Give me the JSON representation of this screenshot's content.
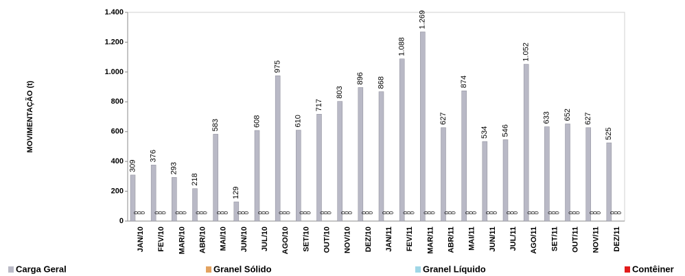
{
  "chart_data": {
    "type": "bar",
    "y_label": "MOVIMENTAÇÃO (t)",
    "categories": [
      "JAN/10",
      "FEV/10",
      "MAR/10",
      "ABR/10",
      "MAI/10",
      "JUN/10",
      "JUL/10",
      "AGO/10",
      "SET/10",
      "OUT/10",
      "NOV/10",
      "DEZ/10",
      "JAN/11",
      "FEV/11",
      "MAR/11",
      "ABR/11",
      "MAI/11",
      "JUN/11",
      "JUL/11",
      "AGO/11",
      "SET/11",
      "OUT/11",
      "NOV/11",
      "DEZ/11"
    ],
    "series": [
      {
        "name": "Carga Geral",
        "color": "#b9b9c6",
        "values": [
          309,
          376,
          293,
          218,
          583,
          129,
          608,
          975,
          610,
          717,
          803,
          896,
          868,
          1088,
          1269,
          627,
          874,
          534,
          546,
          1052,
          633,
          652,
          627,
          525
        ],
        "value_labels": [
          "309",
          "376",
          "293",
          "218",
          "583",
          "129",
          "608",
          "975",
          "610",
          "717",
          "803",
          "896",
          "868",
          "1.088",
          "1.269",
          "627",
          "874",
          "534",
          "546",
          "1.052",
          "633",
          "652",
          "627",
          "525"
        ]
      },
      {
        "name": "Granel Sólido",
        "color": "#e3a25f",
        "values": [
          0,
          0,
          0,
          0,
          0,
          0,
          0,
          0,
          0,
          0,
          0,
          0,
          0,
          0,
          0,
          0,
          0,
          0,
          0,
          0,
          0,
          0,
          0,
          0
        ]
      },
      {
        "name": "Granel Líquido",
        "color": "#9fd6e6",
        "values": [
          0,
          0,
          0,
          0,
          0,
          0,
          0,
          0,
          0,
          0,
          0,
          0,
          0,
          0,
          0,
          0,
          0,
          0,
          0,
          0,
          0,
          0,
          0,
          0
        ]
      },
      {
        "name": "Contêiner",
        "color": "#e21b1b",
        "values": [
          0,
          0,
          0,
          0,
          0,
          0,
          0,
          0,
          0,
          0,
          0,
          0,
          0,
          0,
          0,
          0,
          0,
          0,
          0,
          0,
          0,
          0,
          0,
          0
        ]
      }
    ],
    "ylim": [
      0,
      1400
    ],
    "yticks": [
      0,
      200,
      400,
      600,
      800,
      {
        "value": 1000,
        "label": "1.000"
      },
      {
        "value": 1200,
        "label": "1.200"
      },
      {
        "value": 1400,
        "label": "1.400"
      }
    ],
    "grid": false
  }
}
